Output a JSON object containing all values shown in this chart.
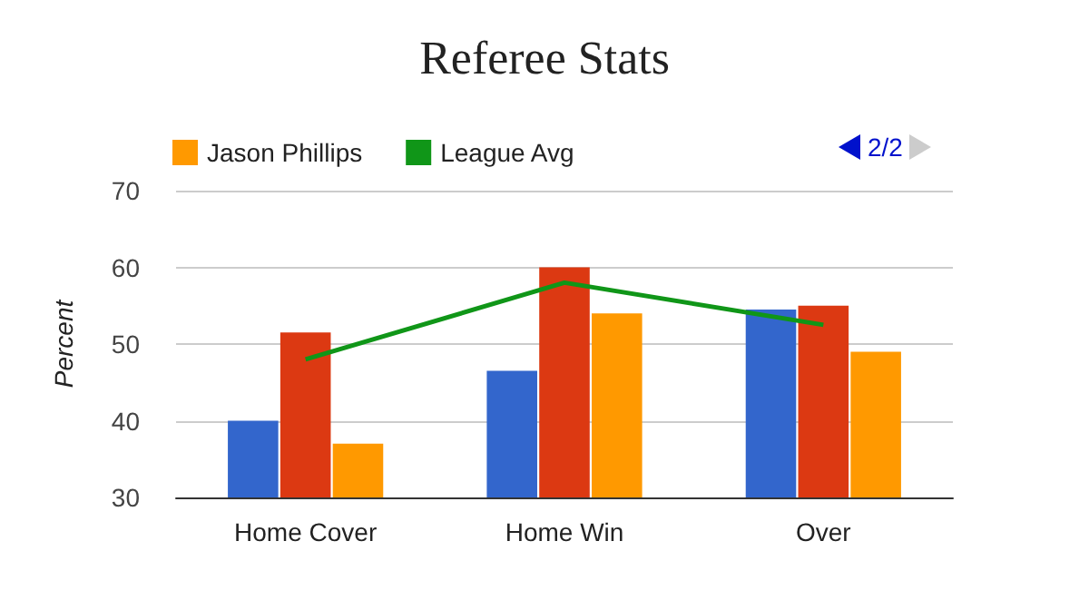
{
  "chart_data": {
    "type": "bar",
    "title": "Referee Stats",
    "ylabel": "Percent",
    "categories": [
      "Home Cover",
      "Home Win",
      "Over"
    ],
    "series": [
      {
        "color": "#3366cc",
        "values": [
          40,
          46.5,
          54.5
        ]
      },
      {
        "color": "#dc3912",
        "values": [
          51.5,
          60,
          55
        ]
      },
      {
        "name": "Jason Phillips",
        "color": "#ff9900",
        "values": [
          37,
          54,
          49
        ]
      },
      {
        "name": "League Avg",
        "type": "line",
        "color": "#109618",
        "values": [
          48,
          58,
          52.5
        ]
      }
    ],
    "ylim": [
      30,
      70
    ],
    "yticks": [
      30,
      40,
      50,
      60,
      70
    ],
    "grid": "y",
    "legend": "top left",
    "marker": "none",
    "annotations": [
      "2/2"
    ]
  }
}
